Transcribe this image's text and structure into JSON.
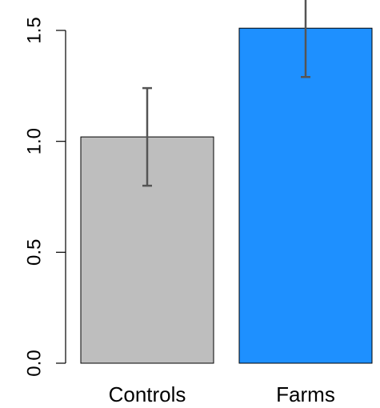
{
  "chart_data": {
    "type": "bar",
    "title": "",
    "xlabel": "",
    "ylabel": "",
    "categories": [
      "Controls",
      "Farms"
    ],
    "values": [
      1.02,
      1.51
    ],
    "error_low": [
      0.8,
      1.29
    ],
    "error_high": [
      1.24,
      1.73
    ],
    "ylim": [
      0,
      1.6
    ],
    "yticks": [
      0.0,
      0.5,
      1.0,
      1.5
    ],
    "ytick_labels": [
      "0.0",
      "0.5",
      "1.0",
      "1.5"
    ],
    "colors": [
      "#bebebe",
      "#1e90ff"
    ],
    "grid": false,
    "legend": "none"
  }
}
